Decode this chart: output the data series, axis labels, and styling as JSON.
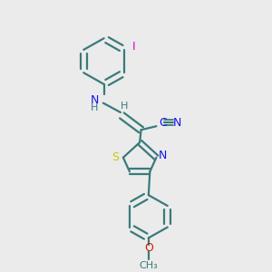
{
  "background_color": "#ebebeb",
  "bond_color": "#3a7a7a",
  "bond_width": 1.6,
  "figsize": [
    3.0,
    3.0
  ],
  "dpi": 100,
  "N_color": "#1414ee",
  "S_color": "#cccc00",
  "O_color": "#cc2200",
  "I_color": "#dd00cc",
  "H_color": "#3a7a7a",
  "CN_color": "#1414ee",
  "xlim": [
    0,
    10
  ],
  "ylim": [
    0,
    10
  ]
}
